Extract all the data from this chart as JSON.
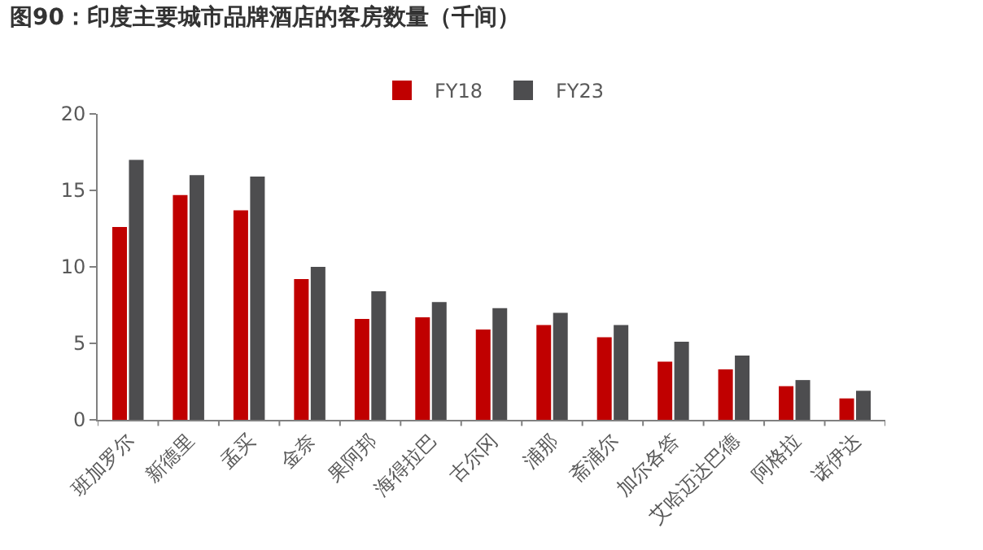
{
  "chart_data": {
    "type": "bar",
    "title": "图90：印度主要城市品牌酒店的客房数量（千间）",
    "categories": [
      "班加罗尔",
      "新德里",
      "孟买",
      "金奈",
      "果阿邦",
      "海得拉巴",
      "古尔冈",
      "浦那",
      "斋浦尔",
      "加尔各答",
      "艾哈迈达巴德",
      "阿格拉",
      "诺伊达"
    ],
    "series": [
      {
        "name": "FY18",
        "color": "#c00000",
        "values": [
          12.6,
          14.7,
          13.7,
          9.2,
          6.6,
          6.7,
          5.9,
          6.2,
          5.4,
          3.8,
          3.3,
          2.2,
          1.4
        ]
      },
      {
        "name": "FY23",
        "color": "#4d4d4f",
        "values": [
          17.0,
          16.0,
          15.9,
          10.0,
          8.4,
          7.7,
          7.3,
          7.0,
          6.2,
          5.1,
          4.2,
          2.6,
          1.9
        ]
      }
    ],
    "ylim": [
      0,
      20
    ],
    "yticks": [
      0,
      5,
      10,
      15,
      20
    ],
    "grid": false,
    "legend": "top"
  }
}
